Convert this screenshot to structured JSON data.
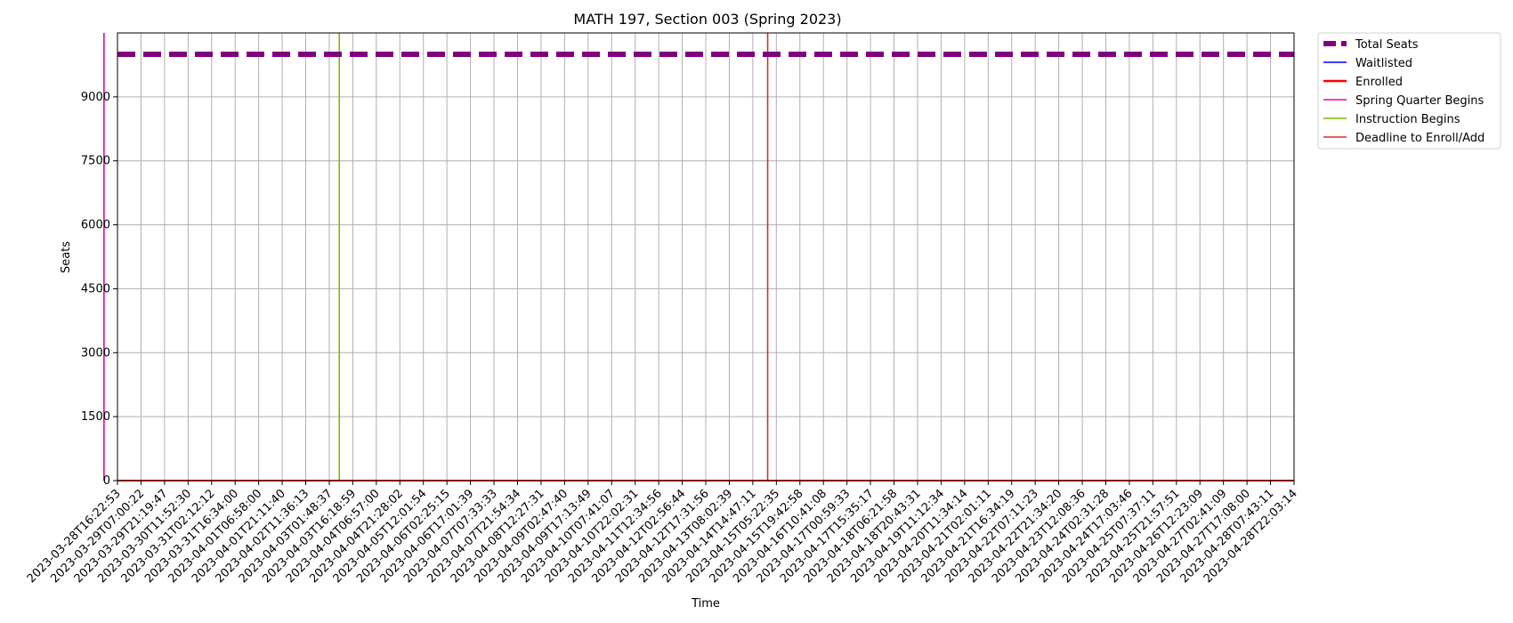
{
  "chart_data": {
    "type": "line",
    "title": "MATH 197, Section 003 (Spring 2023)",
    "xlabel": "Time",
    "ylabel": "Seats",
    "ylim": [
      0,
      10500
    ],
    "yticks": [
      0,
      1500,
      3000,
      4500,
      6000,
      7500,
      9000
    ],
    "grid": true,
    "legend_position": "outside-top-right",
    "x_ticks": [
      "2023-03-28T16:22:53",
      "2023-03-29T07:00:22",
      "2023-03-29T21:19:47",
      "2023-03-30T11:52:30",
      "2023-03-31T02:12:12",
      "2023-03-31T16:34:00",
      "2023-04-01T06:58:00",
      "2023-04-01T21:11:40",
      "2023-04-02T11:36:13",
      "2023-04-03T01:48:37",
      "2023-04-03T16:18:59",
      "2023-04-04T06:57:00",
      "2023-04-04T21:28:02",
      "2023-04-05T12:01:54",
      "2023-04-06T02:25:15",
      "2023-04-06T17:01:39",
      "2023-04-07T07:33:33",
      "2023-04-07T21:54:34",
      "2023-04-08T12:27:31",
      "2023-04-09T02:47:40",
      "2023-04-09T17:13:49",
      "2023-04-10T07:41:07",
      "2023-04-10T22:02:31",
      "2023-04-11T12:34:56",
      "2023-04-12T02:56:44",
      "2023-04-12T17:31:56",
      "2023-04-13T08:02:39",
      "2023-04-14T14:47:11",
      "2023-04-15T05:22:35",
      "2023-04-15T19:42:58",
      "2023-04-16T10:41:08",
      "2023-04-17T00:59:33",
      "2023-04-17T15:35:17",
      "2023-04-18T06:21:58",
      "2023-04-18T20:43:31",
      "2023-04-19T11:12:34",
      "2023-04-20T11:34:14",
      "2023-04-21T02:01:11",
      "2023-04-21T16:34:19",
      "2023-04-22T07:11:23",
      "2023-04-22T21:34:20",
      "2023-04-23T12:08:36",
      "2023-04-24T02:31:28",
      "2023-04-24T17:03:46",
      "2023-04-25T07:37:11",
      "2023-04-25T21:57:51",
      "2023-04-26T12:23:09",
      "2023-04-27T02:41:09",
      "2023-04-27T17:08:00",
      "2023-04-28T07:43:11",
      "2023-04-28T22:03:14"
    ],
    "series": [
      {
        "name": "Total Seats",
        "color": "#800080",
        "style": "dashed",
        "constant_value": 10000
      },
      {
        "name": "Waitlisted",
        "color": "#0000ff",
        "style": "solid",
        "constant_value": 0
      },
      {
        "name": "Enrolled",
        "color": "#ff0000",
        "style": "solid",
        "constant_value": 0
      }
    ],
    "events": [
      {
        "name": "Spring Quarter Begins",
        "color": "#e600b4",
        "x": "2023-03-28T08:00:00"
      },
      {
        "name": "Instruction Begins",
        "color": "#7fb800",
        "x": "2023-04-03T08:00:00"
      },
      {
        "name": "Deadline to Enroll/Add",
        "color": "#d6321e",
        "x": "2023-04-14T23:59:00"
      }
    ]
  }
}
